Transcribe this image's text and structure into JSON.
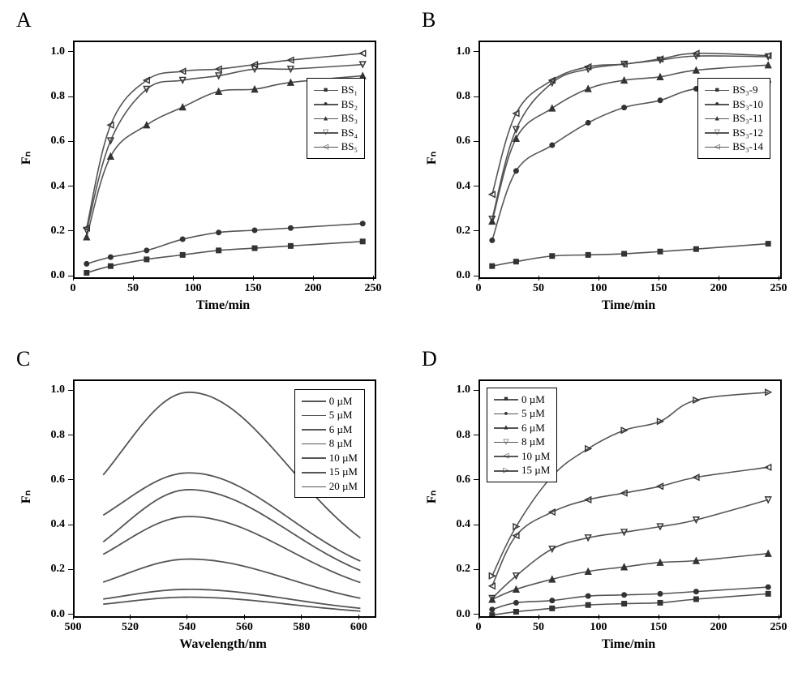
{
  "colors": {
    "axis": "#000000",
    "background": "#ffffff",
    "series": "#555555",
    "marker": "#333333"
  },
  "panelA": {
    "label": "A",
    "type": "line",
    "xlabel": "Time/min",
    "ylabel": "Fₙ",
    "xlim": [
      0,
      250
    ],
    "ylim": [
      0.0,
      1.05
    ],
    "xticks": [
      0,
      50,
      100,
      150,
      200,
      250
    ],
    "yticks": [
      0.0,
      0.2,
      0.4,
      0.6,
      0.8,
      1.0
    ],
    "label_fontsize": 16,
    "tick_fontsize": 14,
    "line_width": 1.6,
    "marker_size": 7,
    "legend_pos": "right-upper",
    "series": [
      {
        "name": "BS₁",
        "marker": "square",
        "x": [
          10,
          30,
          60,
          90,
          120,
          150,
          180,
          240
        ],
        "y": [
          0.02,
          0.05,
          0.08,
          0.1,
          0.12,
          0.13,
          0.14,
          0.16
        ]
      },
      {
        "name": "BS₂",
        "marker": "circle",
        "x": [
          10,
          30,
          60,
          90,
          120,
          150,
          180,
          240
        ],
        "y": [
          0.06,
          0.09,
          0.12,
          0.17,
          0.2,
          0.21,
          0.22,
          0.24
        ]
      },
      {
        "name": "BS₃",
        "marker": "triangle",
        "x": [
          10,
          30,
          60,
          90,
          120,
          150,
          180,
          240
        ],
        "y": [
          0.18,
          0.54,
          0.68,
          0.76,
          0.83,
          0.84,
          0.87,
          0.9
        ]
      },
      {
        "name": "BS₄",
        "marker": "tri-down",
        "x": [
          10,
          30,
          60,
          90,
          120,
          150,
          180,
          240
        ],
        "y": [
          0.21,
          0.61,
          0.84,
          0.88,
          0.9,
          0.93,
          0.93,
          0.95
        ]
      },
      {
        "name": "BS₅",
        "marker": "tri-left",
        "x": [
          10,
          30,
          60,
          90,
          120,
          150,
          180,
          240
        ],
        "y": [
          0.22,
          0.68,
          0.88,
          0.92,
          0.93,
          0.95,
          0.97,
          1.0
        ]
      }
    ]
  },
  "panelB": {
    "label": "B",
    "type": "line",
    "xlabel": "Time/min",
    "ylabel": "Fₙ",
    "xlim": [
      0,
      250
    ],
    "ylim": [
      0.0,
      1.05
    ],
    "xticks": [
      0,
      50,
      100,
      150,
      200,
      250
    ],
    "yticks": [
      0.0,
      0.2,
      0.4,
      0.6,
      0.8,
      1.0
    ],
    "label_fontsize": 16,
    "tick_fontsize": 14,
    "line_width": 1.6,
    "marker_size": 7,
    "legend_pos": "right-upper",
    "series": [
      {
        "name": "BS₃-9",
        "marker": "square",
        "x": [
          10,
          30,
          60,
          90,
          120,
          150,
          180,
          240
        ],
        "y": [
          0.05,
          0.07,
          0.095,
          0.1,
          0.105,
          0.115,
          0.126,
          0.15
        ]
      },
      {
        "name": "BS₃-10",
        "marker": "circle",
        "x": [
          10,
          30,
          60,
          90,
          120,
          150,
          180,
          240
        ],
        "y": [
          0.165,
          0.475,
          0.59,
          0.69,
          0.758,
          0.79,
          0.842,
          0.872
        ]
      },
      {
        "name": "BS₃-11",
        "marker": "triangle",
        "x": [
          10,
          30,
          60,
          90,
          120,
          150,
          180,
          240
        ],
        "y": [
          0.25,
          0.62,
          0.755,
          0.842,
          0.88,
          0.895,
          0.925,
          0.948
        ]
      },
      {
        "name": "BS₃-12",
        "marker": "tri-down",
        "x": [
          10,
          30,
          60,
          90,
          120,
          150,
          180,
          240
        ],
        "y": [
          0.26,
          0.66,
          0.868,
          0.93,
          0.952,
          0.97,
          0.988,
          0.985
        ]
      },
      {
        "name": "BS₃-14",
        "marker": "tri-left",
        "x": [
          10,
          30,
          60,
          90,
          120,
          150,
          180,
          240
        ],
        "y": [
          0.37,
          0.732,
          0.88,
          0.94,
          0.952,
          0.975,
          1.0,
          0.99
        ]
      }
    ]
  },
  "panelC": {
    "label": "C",
    "type": "spectra",
    "xlabel": "Wavelength/nm",
    "ylabel": "Fₙ",
    "xlim": [
      500,
      605
    ],
    "ylim": [
      0.0,
      1.05
    ],
    "xticks": [
      500,
      520,
      540,
      560,
      580,
      600
    ],
    "yticks": [
      0.0,
      0.2,
      0.4,
      0.6,
      0.8,
      1.0
    ],
    "label_fontsize": 16,
    "tick_fontsize": 14,
    "line_width": 1.8,
    "legend_pos": "right-upper",
    "series": [
      {
        "name": "0 µM",
        "peak_x": 540,
        "left_y": 0.03,
        "peak_y": 0.085,
        "right_y": 0.004
      },
      {
        "name": "5 µM",
        "peak_x": 540,
        "left_y": 0.044,
        "peak_y": 0.12,
        "right_y": 0.01
      },
      {
        "name": "6 µM",
        "peak_x": 540,
        "left_y": 0.075,
        "peak_y": 0.255,
        "right_y": 0.028
      },
      {
        "name": "8 µM",
        "peak_x": 540,
        "left_y": 0.15,
        "peak_y": 0.445,
        "right_y": 0.062
      },
      {
        "name": "10 µM",
        "peak_x": 540,
        "left_y": 0.158,
        "peak_y": 0.565,
        "right_y": 0.096
      },
      {
        "name": "15 µM",
        "peak_x": 540,
        "left_y": 0.31,
        "peak_y": 0.64,
        "right_y": 0.128
      },
      {
        "name": "20 µM",
        "peak_x": 540,
        "left_y": 0.355,
        "peak_y": 1.0,
        "right_y": 0.155
      }
    ]
  },
  "panelD": {
    "label": "D",
    "type": "line",
    "xlabel": "Time/min",
    "ylabel": "Fₙ",
    "xlim": [
      0,
      250
    ],
    "ylim": [
      0.0,
      1.05
    ],
    "xticks": [
      0,
      50,
      100,
      150,
      200,
      250
    ],
    "yticks": [
      0.0,
      0.2,
      0.4,
      0.6,
      0.8,
      1.0
    ],
    "label_fontsize": 16,
    "tick_fontsize": 14,
    "line_width": 1.6,
    "marker_size": 7,
    "legend_pos": "left-upper",
    "series": [
      {
        "name": "0 µM",
        "marker": "square",
        "x": [
          10,
          30,
          60,
          90,
          120,
          150,
          180,
          240
        ],
        "y": [
          0.005,
          0.02,
          0.035,
          0.05,
          0.056,
          0.06,
          0.076,
          0.1
        ]
      },
      {
        "name": "5 µM",
        "marker": "circle",
        "x": [
          10,
          30,
          60,
          90,
          120,
          150,
          180,
          240
        ],
        "y": [
          0.03,
          0.06,
          0.07,
          0.09,
          0.095,
          0.1,
          0.11,
          0.13
        ]
      },
      {
        "name": "6 µM",
        "marker": "triangle",
        "x": [
          10,
          30,
          60,
          90,
          120,
          150,
          180,
          240
        ],
        "y": [
          0.075,
          0.12,
          0.165,
          0.2,
          0.22,
          0.24,
          0.248,
          0.28
        ]
      },
      {
        "name": "8 µM",
        "marker": "tri-down",
        "x": [
          10,
          30,
          60,
          90,
          120,
          150,
          180,
          240
        ],
        "y": [
          0.08,
          0.18,
          0.3,
          0.35,
          0.375,
          0.4,
          0.43,
          0.52
        ]
      },
      {
        "name": "10 µM",
        "marker": "tri-left",
        "x": [
          10,
          30,
          60,
          90,
          120,
          150,
          180,
          240
        ],
        "y": [
          0.135,
          0.36,
          0.465,
          0.52,
          0.55,
          0.58,
          0.62,
          0.665
        ]
      },
      {
        "name": "15 µM",
        "marker": "tri-right",
        "x": [
          10,
          30,
          60,
          90,
          120,
          150,
          180,
          240
        ],
        "y": [
          0.18,
          0.4,
          0.625,
          0.748,
          0.83,
          0.87,
          0.965,
          1.0
        ]
      }
    ]
  }
}
